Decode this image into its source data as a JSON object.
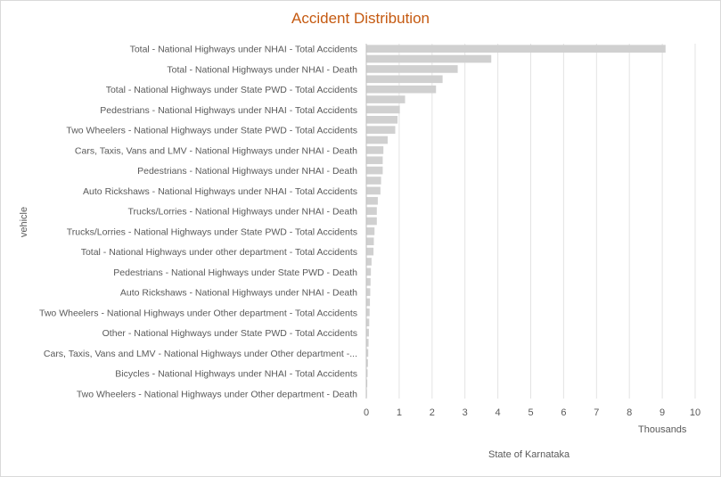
{
  "chart_data": {
    "type": "bar",
    "orientation": "horizontal",
    "title": "Accident Distribution",
    "xlabel": "State of Karnataka",
    "ylabel": "vehicle",
    "x_unit_label": "Thousands",
    "xlim": [
      0,
      10
    ],
    "xticks": [
      0,
      1,
      2,
      3,
      4,
      5,
      6,
      7,
      8,
      9,
      10
    ],
    "grid": true,
    "color": "#d0d0d0",
    "categories": [
      "Total - National Highways under NHAI - Total Accidents",
      "",
      "Total - National Highways under NHAI - Death",
      "",
      "Total - National Highways under State PWD - Total Accidents",
      "",
      "Pedestrians - National Highways under NHAI - Total Accidents",
      "",
      "Two Wheelers - National Highways under State PWD - Total Accidents",
      "",
      "Cars, Taxis, Vans and LMV - National Highways under NHAI - Death",
      "",
      "Pedestrians - National Highways under NHAI - Death",
      "",
      "Auto Rickshaws - National Highways under NHAI - Total Accidents",
      "",
      "Trucks/Lorries - National Highways under NHAI - Death",
      "",
      "Trucks/Lorries - National Highways under State PWD - Total Accidents",
      "",
      "Total - National Highways under other department - Total Accidents",
      "",
      "Pedestrians - National Highways under State PWD - Death",
      "",
      "Auto Rickshaws - National Highways under NHAI - Death",
      "",
      "Two Wheelers - National Highways under Other department - Total Accidents",
      "",
      "Other - National Highways under State PWD - Total Accidents",
      "",
      "Cars, Taxis, Vans and LMV - National Highways under Other department -...",
      "",
      "Bicycles - National Highways under NHAI - Total Accidents",
      "",
      "Two Wheelers - National Highways under Other department - Death"
    ],
    "values": [
      9.1,
      3.8,
      2.78,
      2.32,
      2.12,
      1.18,
      1.02,
      0.95,
      0.88,
      0.65,
      0.52,
      0.5,
      0.5,
      0.45,
      0.43,
      0.35,
      0.32,
      0.32,
      0.25,
      0.23,
      0.22,
      0.16,
      0.14,
      0.13,
      0.12,
      0.11,
      0.1,
      0.09,
      0.08,
      0.07,
      0.06,
      0.05,
      0.04,
      0.03,
      0.02
    ]
  }
}
